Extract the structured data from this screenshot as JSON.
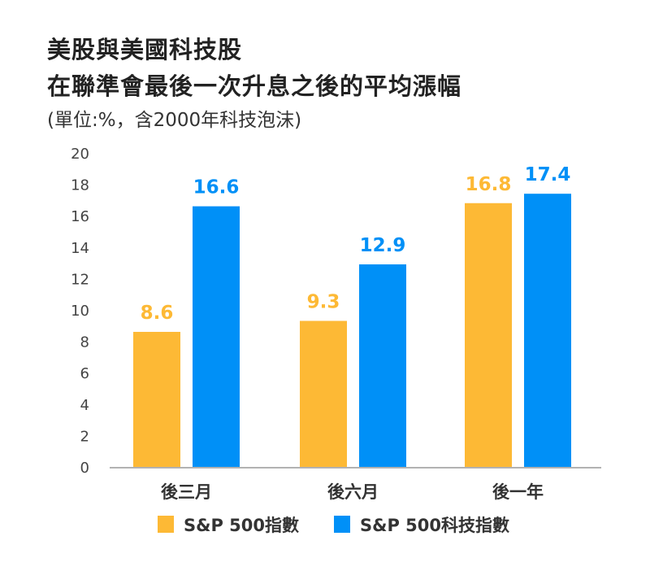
{
  "chart_data": {
    "type": "bar",
    "title": [
      "美股與美國科技股",
      "在聯準會最後一次升息之後的平均漲幅"
    ],
    "subtitle": "(單位:%，含2000年科技泡沫)",
    "categories": [
      "後三月",
      "後六月",
      "後一年"
    ],
    "series": [
      {
        "name": "S&P 500指數",
        "color": "#FDB935",
        "values": [
          8.6,
          9.3,
          16.8
        ],
        "labels": [
          "8.6",
          "9.3",
          "16.8"
        ]
      },
      {
        "name": "S&P 500科技指數",
        "color": "#0090F7",
        "values": [
          16.6,
          12.9,
          17.4
        ],
        "labels": [
          "16.6",
          "12.9",
          "17.4"
        ]
      }
    ],
    "yticks": [
      "0",
      "2",
      "4",
      "6",
      "8",
      "10",
      "12",
      "14",
      "16",
      "18",
      "20"
    ],
    "ylim": [
      0,
      20
    ],
    "xlabel": "",
    "ylabel": "",
    "grid": false,
    "legend_position": "bottom"
  }
}
